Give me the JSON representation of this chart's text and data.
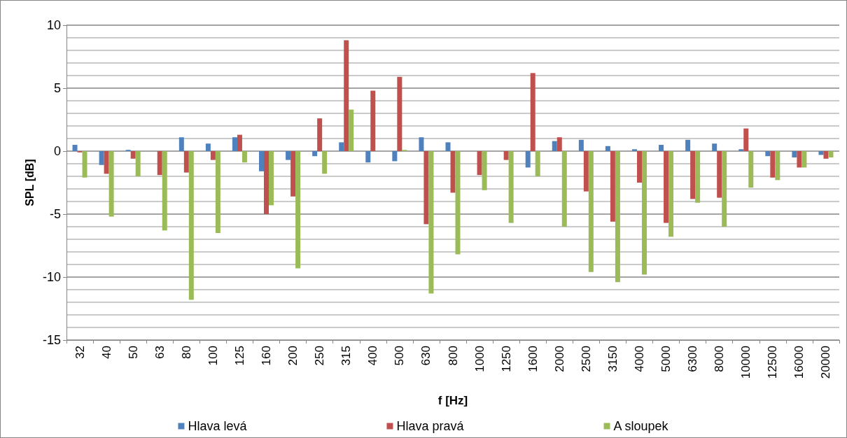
{
  "chart_data": {
    "type": "bar",
    "xlabel": "f [Hz]",
    "ylabel": "SPL [dB]",
    "categories": [
      "32",
      "40",
      "50",
      "63",
      "80",
      "100",
      "125",
      "160",
      "200",
      "250",
      "315",
      "400",
      "500",
      "630",
      "800",
      "1000",
      "1250",
      "1600",
      "2000",
      "2500",
      "3150",
      "4000",
      "5000",
      "6300",
      "8000",
      "10000",
      "12500",
      "16000",
      "20000"
    ],
    "series": [
      {
        "name": "Hlava levá",
        "color": "#4f81bd",
        "values": [
          0.5,
          -1.1,
          0.1,
          0,
          1.1,
          0.6,
          1.1,
          -1.6,
          -0.7,
          -0.4,
          0.7,
          -0.9,
          -0.8,
          1.1,
          0.7,
          0,
          0,
          -1.3,
          0.8,
          0.9,
          0.4,
          0.15,
          0.5,
          0.9,
          0.6,
          0.15,
          -0.4,
          -0.5,
          -0.3
        ]
      },
      {
        "name": "Hlava pravá",
        "color": "#c0504d",
        "values": [
          -0.1,
          -1.8,
          -0.6,
          -1.9,
          -1.7,
          -0.7,
          1.3,
          -5.0,
          -3.6,
          2.6,
          8.8,
          4.8,
          5.9,
          -5.8,
          -3.3,
          -1.9,
          -0.7,
          6.2,
          1.1,
          -3.2,
          -5.6,
          -2.5,
          -5.7,
          -3.8,
          -3.7,
          1.8,
          -2.1,
          -1.3,
          -0.6
        ]
      },
      {
        "name": "A sloupek",
        "color": "#9bbb59",
        "values": [
          -2.1,
          -5.2,
          -2.0,
          -6.3,
          -11.8,
          -6.5,
          -0.9,
          -4.3,
          -9.3,
          -1.8,
          3.3,
          0,
          0.1,
          -11.3,
          -8.2,
          -3.1,
          -5.7,
          -2.0,
          -6.0,
          -9.6,
          -10.4,
          -9.8,
          -6.8,
          -4.1,
          -6.0,
          -2.9,
          -2.3,
          -1.3,
          -0.5
        ]
      }
    ],
    "ylim": [
      -15,
      10
    ],
    "yticks": [
      -15,
      -10,
      -5,
      0,
      5,
      10
    ],
    "grid": "y",
    "legend": "bottom"
  }
}
